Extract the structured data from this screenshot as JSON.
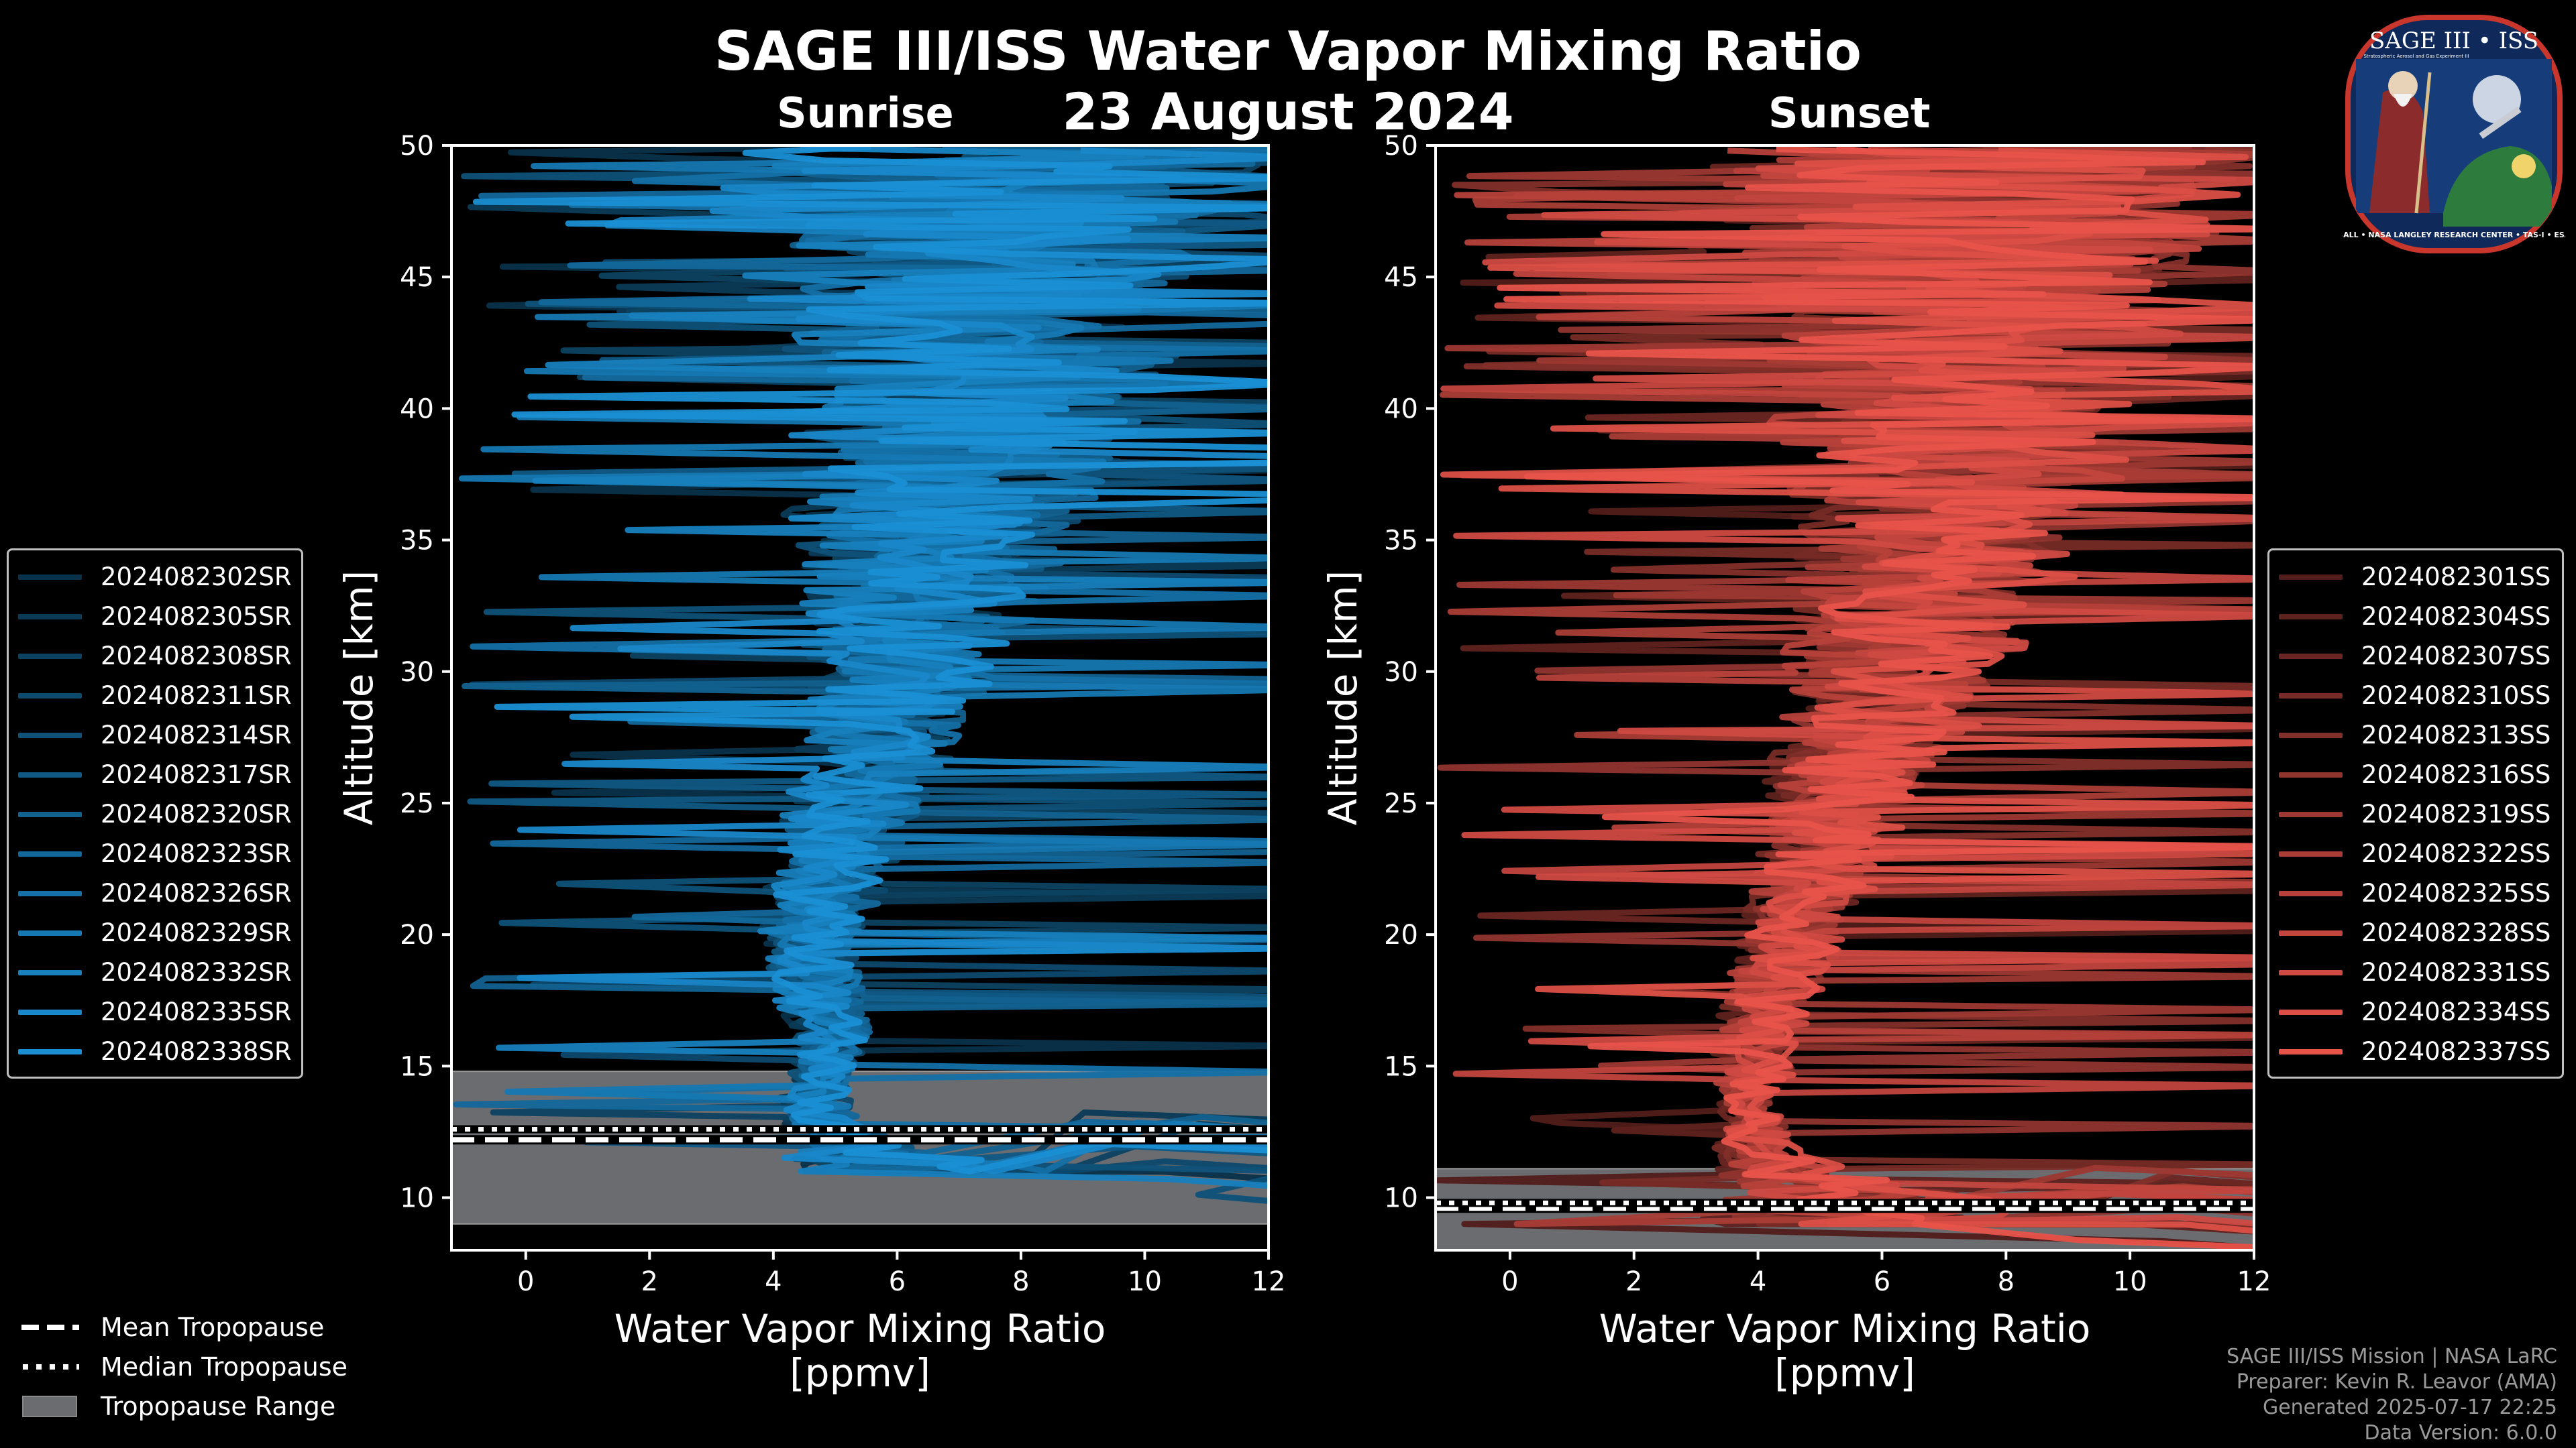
{
  "title": "SAGE III/ISS Water Vapor Mixing Ratio",
  "date": "23 August 2024",
  "colors": {
    "sunrise": "#1a8fd4",
    "sunset": "#e8534a",
    "tropopause_fill": "#6a6c6f",
    "background": "#000000"
  },
  "panels": {
    "sunrise": {
      "label": "Sunrise",
      "legend": [
        "2024082302SR",
        "2024082305SR",
        "2024082308SR",
        "2024082311SR",
        "2024082314SR",
        "2024082317SR",
        "2024082320SR",
        "2024082323SR",
        "2024082326SR",
        "2024082329SR",
        "2024082332SR",
        "2024082335SR",
        "2024082338SR"
      ]
    },
    "sunset": {
      "label": "Sunset",
      "legend": [
        "2024082301SS",
        "2024082304SS",
        "2024082307SS",
        "2024082310SS",
        "2024082313SS",
        "2024082316SS",
        "2024082319SS",
        "2024082322SS",
        "2024082325SS",
        "2024082328SS",
        "2024082331SS",
        "2024082334SS",
        "2024082337SS"
      ]
    }
  },
  "tropopause_legend": {
    "mean": "Mean Tropopause",
    "median": "Median Tropopause",
    "range": "Tropopause Range"
  },
  "footer": {
    "line1": "SAGE III/ISS Mission | NASA LaRC",
    "line2": "Preparer: Kevin R. Leavor (AMA)",
    "line3": "Generated 2025-07-17 22:25",
    "line4": "Data Version: 6.0.0"
  },
  "logo": {
    "top_text": "SAGE III • ISS",
    "sub_text": "Stratospheric Aerosol and Gas Experiment III",
    "ring_text": "BALL • NASA LANGLEY RESEARCH CENTER • TAS-I • ESA"
  },
  "chart_data": [
    {
      "type": "line",
      "panel": "sunrise",
      "title": "Sunrise",
      "xlabel": "Water Vapor Mixing Ratio\n[ppmv]",
      "xlabel_line1": "Water Vapor Mixing Ratio",
      "xlabel_line2": "[ppmv]",
      "ylabel": "Altitude [km]",
      "xlim": [
        -1.2,
        12
      ],
      "ylim": [
        8,
        50
      ],
      "xticks": [
        0,
        2,
        4,
        6,
        8,
        10,
        12
      ],
      "yticks": [
        10,
        15,
        20,
        25,
        30,
        35,
        40,
        45,
        50
      ],
      "tropopause": {
        "mean": 12.2,
        "median": 12.6,
        "range": [
          9.0,
          14.8
        ]
      },
      "profile": {
        "altitude": [
          11,
          12,
          13,
          14,
          15,
          16,
          18,
          20,
          22,
          24,
          26,
          28,
          30,
          32,
          34,
          36,
          38,
          40,
          42,
          44,
          46,
          48,
          50
        ],
        "center": [
          6.5,
          5.2,
          4.8,
          4.7,
          4.8,
          5.0,
          4.7,
          4.6,
          4.9,
          5.2,
          5.5,
          5.8,
          6.1,
          6.3,
          6.5,
          6.7,
          7.0,
          7.2,
          7.3,
          7.4,
          7.4,
          7.4,
          7.3
        ],
        "spread": [
          2.0,
          1.0,
          0.6,
          0.5,
          0.5,
          0.6,
          0.7,
          0.8,
          0.9,
          1.0,
          1.1,
          1.3,
          1.5,
          1.7,
          1.9,
          2.1,
          2.4,
          2.7,
          3.0,
          3.3,
          3.6,
          4.0,
          4.2
        ]
      },
      "series_count": 13
    },
    {
      "type": "line",
      "panel": "sunset",
      "title": "Sunset",
      "xlabel": "Water Vapor Mixing Ratio\n[ppmv]",
      "xlabel_line1": "Water Vapor Mixing Ratio",
      "xlabel_line2": "[ppmv]",
      "ylabel": "Altitude [km]",
      "xlim": [
        -1.2,
        12
      ],
      "ylim": [
        8,
        50
      ],
      "xticks": [
        0,
        2,
        4,
        6,
        8,
        10,
        12
      ],
      "yticks": [
        10,
        15,
        20,
        25,
        30,
        35,
        40,
        45,
        50
      ],
      "tropopause": {
        "mean": 9.6,
        "median": 9.8,
        "range": [
          8.0,
          11.1
        ]
      },
      "profile": {
        "altitude": [
          9,
          10,
          11,
          12,
          13,
          14,
          16,
          18,
          20,
          22,
          24,
          26,
          28,
          30,
          32,
          34,
          36,
          38,
          40,
          42,
          44,
          46,
          48,
          50
        ],
        "center": [
          6.0,
          5.5,
          4.4,
          4.0,
          3.9,
          3.9,
          4.0,
          4.3,
          4.6,
          4.9,
          5.2,
          5.5,
          5.9,
          6.3,
          6.6,
          6.9,
          7.1,
          7.3,
          7.5,
          7.6,
          7.6,
          7.5,
          7.4,
          7.3
        ],
        "spread": [
          2.5,
          2.0,
          1.0,
          0.6,
          0.5,
          0.5,
          0.6,
          0.7,
          0.8,
          0.9,
          1.0,
          1.2,
          1.4,
          1.6,
          1.8,
          2.0,
          2.3,
          2.6,
          2.9,
          3.2,
          3.5,
          3.8,
          4.1,
          4.3
        ]
      },
      "series_count": 13
    }
  ]
}
